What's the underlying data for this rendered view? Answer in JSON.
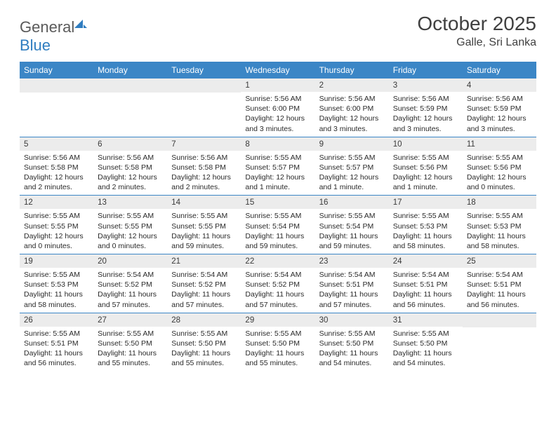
{
  "brand": {
    "part1": "General",
    "part2": "Blue"
  },
  "title": "October 2025",
  "location": "Galle, Sri Lanka",
  "colors": {
    "header_bg": "#3b86c6",
    "daynum_bg": "#ececec",
    "divider": "#3b86c6",
    "text": "#2a2a2a",
    "title_text": "#404040"
  },
  "dow": [
    "Sunday",
    "Monday",
    "Tuesday",
    "Wednesday",
    "Thursday",
    "Friday",
    "Saturday"
  ],
  "weeks": [
    [
      {
        "day": "",
        "sunrise": "",
        "sunset": "",
        "daylight": ""
      },
      {
        "day": "",
        "sunrise": "",
        "sunset": "",
        "daylight": ""
      },
      {
        "day": "",
        "sunrise": "",
        "sunset": "",
        "daylight": ""
      },
      {
        "day": "1",
        "sunrise": "Sunrise: 5:56 AM",
        "sunset": "Sunset: 6:00 PM",
        "daylight": "Daylight: 12 hours and 3 minutes."
      },
      {
        "day": "2",
        "sunrise": "Sunrise: 5:56 AM",
        "sunset": "Sunset: 6:00 PM",
        "daylight": "Daylight: 12 hours and 3 minutes."
      },
      {
        "day": "3",
        "sunrise": "Sunrise: 5:56 AM",
        "sunset": "Sunset: 5:59 PM",
        "daylight": "Daylight: 12 hours and 3 minutes."
      },
      {
        "day": "4",
        "sunrise": "Sunrise: 5:56 AM",
        "sunset": "Sunset: 5:59 PM",
        "daylight": "Daylight: 12 hours and 3 minutes."
      }
    ],
    [
      {
        "day": "5",
        "sunrise": "Sunrise: 5:56 AM",
        "sunset": "Sunset: 5:58 PM",
        "daylight": "Daylight: 12 hours and 2 minutes."
      },
      {
        "day": "6",
        "sunrise": "Sunrise: 5:56 AM",
        "sunset": "Sunset: 5:58 PM",
        "daylight": "Daylight: 12 hours and 2 minutes."
      },
      {
        "day": "7",
        "sunrise": "Sunrise: 5:56 AM",
        "sunset": "Sunset: 5:58 PM",
        "daylight": "Daylight: 12 hours and 2 minutes."
      },
      {
        "day": "8",
        "sunrise": "Sunrise: 5:55 AM",
        "sunset": "Sunset: 5:57 PM",
        "daylight": "Daylight: 12 hours and 1 minute."
      },
      {
        "day": "9",
        "sunrise": "Sunrise: 5:55 AM",
        "sunset": "Sunset: 5:57 PM",
        "daylight": "Daylight: 12 hours and 1 minute."
      },
      {
        "day": "10",
        "sunrise": "Sunrise: 5:55 AM",
        "sunset": "Sunset: 5:56 PM",
        "daylight": "Daylight: 12 hours and 1 minute."
      },
      {
        "day": "11",
        "sunrise": "Sunrise: 5:55 AM",
        "sunset": "Sunset: 5:56 PM",
        "daylight": "Daylight: 12 hours and 0 minutes."
      }
    ],
    [
      {
        "day": "12",
        "sunrise": "Sunrise: 5:55 AM",
        "sunset": "Sunset: 5:55 PM",
        "daylight": "Daylight: 12 hours and 0 minutes."
      },
      {
        "day": "13",
        "sunrise": "Sunrise: 5:55 AM",
        "sunset": "Sunset: 5:55 PM",
        "daylight": "Daylight: 12 hours and 0 minutes."
      },
      {
        "day": "14",
        "sunrise": "Sunrise: 5:55 AM",
        "sunset": "Sunset: 5:55 PM",
        "daylight": "Daylight: 11 hours and 59 minutes."
      },
      {
        "day": "15",
        "sunrise": "Sunrise: 5:55 AM",
        "sunset": "Sunset: 5:54 PM",
        "daylight": "Daylight: 11 hours and 59 minutes."
      },
      {
        "day": "16",
        "sunrise": "Sunrise: 5:55 AM",
        "sunset": "Sunset: 5:54 PM",
        "daylight": "Daylight: 11 hours and 59 minutes."
      },
      {
        "day": "17",
        "sunrise": "Sunrise: 5:55 AM",
        "sunset": "Sunset: 5:53 PM",
        "daylight": "Daylight: 11 hours and 58 minutes."
      },
      {
        "day": "18",
        "sunrise": "Sunrise: 5:55 AM",
        "sunset": "Sunset: 5:53 PM",
        "daylight": "Daylight: 11 hours and 58 minutes."
      }
    ],
    [
      {
        "day": "19",
        "sunrise": "Sunrise: 5:55 AM",
        "sunset": "Sunset: 5:53 PM",
        "daylight": "Daylight: 11 hours and 58 minutes."
      },
      {
        "day": "20",
        "sunrise": "Sunrise: 5:54 AM",
        "sunset": "Sunset: 5:52 PM",
        "daylight": "Daylight: 11 hours and 57 minutes."
      },
      {
        "day": "21",
        "sunrise": "Sunrise: 5:54 AM",
        "sunset": "Sunset: 5:52 PM",
        "daylight": "Daylight: 11 hours and 57 minutes."
      },
      {
        "day": "22",
        "sunrise": "Sunrise: 5:54 AM",
        "sunset": "Sunset: 5:52 PM",
        "daylight": "Daylight: 11 hours and 57 minutes."
      },
      {
        "day": "23",
        "sunrise": "Sunrise: 5:54 AM",
        "sunset": "Sunset: 5:51 PM",
        "daylight": "Daylight: 11 hours and 57 minutes."
      },
      {
        "day": "24",
        "sunrise": "Sunrise: 5:54 AM",
        "sunset": "Sunset: 5:51 PM",
        "daylight": "Daylight: 11 hours and 56 minutes."
      },
      {
        "day": "25",
        "sunrise": "Sunrise: 5:54 AM",
        "sunset": "Sunset: 5:51 PM",
        "daylight": "Daylight: 11 hours and 56 minutes."
      }
    ],
    [
      {
        "day": "26",
        "sunrise": "Sunrise: 5:55 AM",
        "sunset": "Sunset: 5:51 PM",
        "daylight": "Daylight: 11 hours and 56 minutes."
      },
      {
        "day": "27",
        "sunrise": "Sunrise: 5:55 AM",
        "sunset": "Sunset: 5:50 PM",
        "daylight": "Daylight: 11 hours and 55 minutes."
      },
      {
        "day": "28",
        "sunrise": "Sunrise: 5:55 AM",
        "sunset": "Sunset: 5:50 PM",
        "daylight": "Daylight: 11 hours and 55 minutes."
      },
      {
        "day": "29",
        "sunrise": "Sunrise: 5:55 AM",
        "sunset": "Sunset: 5:50 PM",
        "daylight": "Daylight: 11 hours and 55 minutes."
      },
      {
        "day": "30",
        "sunrise": "Sunrise: 5:55 AM",
        "sunset": "Sunset: 5:50 PM",
        "daylight": "Daylight: 11 hours and 54 minutes."
      },
      {
        "day": "31",
        "sunrise": "Sunrise: 5:55 AM",
        "sunset": "Sunset: 5:50 PM",
        "daylight": "Daylight: 11 hours and 54 minutes."
      },
      {
        "day": "",
        "sunrise": "",
        "sunset": "",
        "daylight": ""
      }
    ]
  ]
}
